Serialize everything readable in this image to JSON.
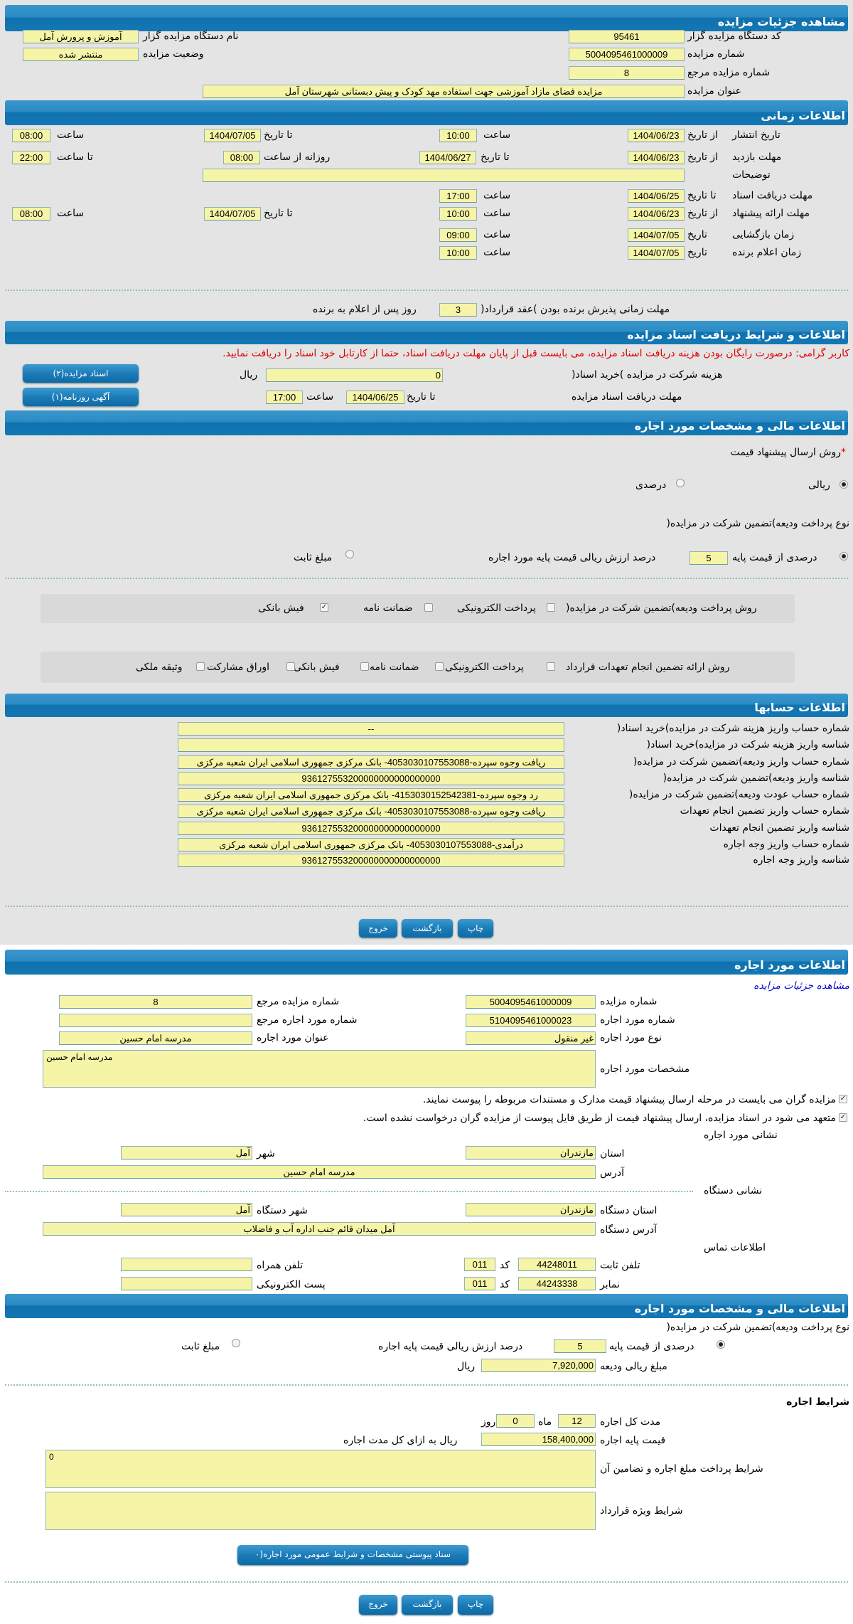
{
  "s1": {
    "title": "مشاهده جزئیات مزایده",
    "org_code_label": "کد دستگاه مزایده گزار",
    "org_code": "95461",
    "org_name_label": "نام دستگاه مزایده گزار",
    "org_name": "آموزش و پرورش آمل",
    "auction_no_label": "شماره مزایده",
    "auction_no": "5004095461000009",
    "status_label": "وضعیت مزایده",
    "status": "منتشر شده",
    "ref_no_label": "شماره مزایده مرجع",
    "ref_no": "8",
    "subject_label": "عنوان مزایده",
    "subject": "مزایده فضای مازاد آموزشی جهت استفاده مهد کودک و پیش دبستانی شهرستان آمل"
  },
  "s2": {
    "title": "اطلاعات زمانی",
    "from_date": "از تاریخ",
    "to_date": "تا تاریخ",
    "date": "تاریخ",
    "hour": "ساعت",
    "to_hour": "تا ساعت",
    "daily_from": "روزانه از ساعت",
    "publish": {
      "label": "تاریخ انتشار",
      "from": "1404/06/23",
      "from_time": "10:00",
      "to": "1404/07/05",
      "to_time": "08:00"
    },
    "visit": {
      "label": "مهلت بازدید",
      "from": "1404/06/23",
      "to": "1404/06/27",
      "daily_from": "08:00",
      "daily_to": "22:00"
    },
    "notes_label": "توضیحات",
    "notes": "",
    "docs": {
      "label": "مهلت دریافت اسناد",
      "to": "1404/06/25",
      "time": "17:00"
    },
    "offer": {
      "label": "مهلت ارائه پیشنهاد",
      "from": "1404/06/23",
      "from_time": "10:00",
      "to": "1404/07/05",
      "to_time": "08:00"
    },
    "opening": {
      "label": "زمان بازگشایی",
      "date": "1404/07/05",
      "time": "09:00"
    },
    "winner": {
      "label": "زمان اعلام برنده",
      "date": "1404/07/05",
      "time": "10:00"
    },
    "accept_label": "مهلت زمانی پذیرش برنده بودن )عقد قرارداد(",
    "accept_days": "3",
    "accept_suffix": "روز پس از اعلام به برنده"
  },
  "s3": {
    "title": "اطلاعات و شرایط دریافت اسناد مزایده",
    "warning": "کاربر گرامی: درصورت رایگان بودن هزینه دریافت اسناد مزایده، می بایست قبل از پایان مهلت دریافت اسناد، حتما از کارتابل خود اسناد را دریافت نمایید.",
    "fee_label": "هزینه شرکت در مزایده )خرید اسناد(",
    "fee": "0",
    "currency": "ریال",
    "deadline_label": "مهلت دریافت اسناد مزایده",
    "to_date": "تا تاریخ",
    "deadline": "1404/06/25",
    "hour": "ساعت",
    "deadline_time": "17:00",
    "docs_button": "اسناد مزایده(۲)",
    "ad_button": "آگهی روزنامه(۱)"
  },
  "s4": {
    "title": "اطلاعات مالی و مشخصات مورد اجاره",
    "price_method_label": "روش ارسال پیشنهاد قیمت",
    "required_mark": "*",
    "rial": "ریالی",
    "percent": "درصدی",
    "deposit_type_label": "نوع پرداخت ودیعه)تضمین شرکت در مزایده(",
    "pct_of_base": "درصدی از قیمت پایه",
    "pct_value": "5",
    "pct_suffix": "درصد ارزش ریالی قیمت پایه مورد اجاره",
    "fixed": "مبلغ ثابت",
    "deposit_method_label": "روش پرداخت ودیعه)تضمین شرکت در مزایده(",
    "deposit_methods": [
      {
        "label": "پرداخت الکترونیکی",
        "checked": false
      },
      {
        "label": "ضمانت نامه",
        "checked": false
      },
      {
        "label": "فیش بانکی",
        "checked": true
      }
    ],
    "guarantee_label": "روش ارائه تضمین انجام تعهدات قرارداد",
    "guarantee_methods": [
      {
        "label": "پرداخت الکترونیکی",
        "checked": false
      },
      {
        "label": "ضمانت نامه",
        "checked": false
      },
      {
        "label": "فیش بانکی",
        "checked": false
      },
      {
        "label": "اوراق مشارکت",
        "checked": false
      },
      {
        "label": "وثیقه ملکی",
        "checked": false
      }
    ]
  },
  "s5": {
    "title": "اطلاعات حسابها",
    "rows": [
      {
        "label": "شماره حساب واریز هزینه شرکت در مزایده)خرید اسناد(",
        "value": "--"
      },
      {
        "label": "شناسه واریز هزینه شرکت در مزایده)خرید اسناد(",
        "value": ""
      },
      {
        "label": "شماره حساب واریز ودیعه)تضمین شرکت در مزایده(",
        "value": "ریافت وجوه سپرده-4053030107553088- بانک مرکزی جمهوری اسلامی ایران شعبه مرکزی"
      },
      {
        "label": "شناسه واریز ودیعه)تضمین شرکت در مزایده(",
        "value": "936127553200000000000000000"
      },
      {
        "label": "شماره حساب عودت ودیعه)تضمین شرکت در مزایده(",
        "value": "رد وجوه سپرده-4153030152542381- بانک مرکزی جمهوری اسلامی ایران شعبه مرکزی"
      },
      {
        "label": "شماره حساب واریز تضمین انجام تعهدات",
        "value": "ریافت وجوه سپرده-4053030107553088- بانک مرکزی جمهوری اسلامی ایران شعبه مرکزی"
      },
      {
        "label": "شناسه واریز تضمین انجام تعهدات",
        "value": "936127553200000000000000000"
      },
      {
        "label": "شماره حساب واریز وجه اجاره",
        "value": "درآمدی-4053030107553088- بانک مرکزی جمهوری اسلامی ایران شعبه مرکزی"
      },
      {
        "label": "شناسه واریز وجه اجاره",
        "value": "936127553200000000000000000"
      }
    ]
  },
  "actions": {
    "print": "چاپ",
    "back": "بازگشت",
    "exit": "خروج"
  },
  "s6": {
    "title": "اطلاعات مورد اجاره",
    "link": "مشاهده جزئیات مزایده",
    "auction_no_label": "شماره مزایده",
    "auction_no": "5004095461000009",
    "ref_no_label": "شماره مزایده مرجع",
    "ref_no": "8",
    "item_no_label": "شماره مورد اجاره",
    "item_no": "5104095461000023",
    "item_ref_label": "شماره مورد اجاره مرجع",
    "item_ref": "",
    "type_label": "نوع مورد اجاره",
    "type": "غیر منقول",
    "item_title_label": "عنوان مورد اجاره",
    "item_title": "مدرسه  امام حسین",
    "spec_label": "مشخصات مورد اجاره",
    "spec": "مدرسه  امام حسین",
    "check1": "مزایده گران می بایست در مرحله ارسال پیشنهاد قیمت مدارک و مستندات مربوطه را پیوست نمایند.",
    "check2": "متعهد می شود در اسناد مزایده، ارسال پیشنهاد قیمت از طریق فایل پیوست از مزایده گران درخواست نشده است.",
    "addr_title": "نشانی مورد اجاره",
    "province_label": "استان",
    "province": "مازندران",
    "city_label": "شهر",
    "city": "آمل",
    "address_label": "آدرس",
    "address": "مدرسه  امام حسین",
    "org_addr_title": "نشانی دستگاه",
    "org_province_label": "استان دستگاه",
    "org_province": "مازندران",
    "org_city_label": "شهر دستگاه",
    "org_city": "آمل",
    "org_address_label": "آدرس دستگاه",
    "org_address": "آمل میدان قائم جنب اداره آب و فاضلاب",
    "contact_title": "اطلاعات تماس",
    "code_label": "کد",
    "phone_label": "تلفن ثابت",
    "phone": "44248011",
    "phone_code": "011",
    "mobile_label": "تلفن همراه",
    "mobile": "",
    "fax_label": "نمابر",
    "fax": "44243338",
    "fax_code": "011",
    "email_label": "پست الکترونیکی",
    "email": ""
  },
  "s7": {
    "title": "اطلاعات مالی و مشخصات مورد اجاره",
    "deposit_type_label": "نوع پرداخت ودیعه)تضمین شرکت در مزایده(",
    "pct_of_base": "درصدی از قیمت پایه",
    "pct_value": "5",
    "pct_suffix": "درصد ارزش ریالی قیمت پایه اجاره",
    "fixed": "مبلغ ثابت",
    "deposit_amount_label": "مبلغ ریالی ودیعه",
    "deposit_amount": "7,920,000",
    "currency": "ریال",
    "terms_title": "شرایط اجاره",
    "duration_label": "مدت کل اجاره",
    "months": "12",
    "month_unit": "ماه",
    "days": "0",
    "day_unit": "روز",
    "base_price_label": "قیمت پایه اجاره",
    "base_price": "158,400,000",
    "base_price_suffix": "ریال به ازای کل مدت اجاره",
    "payment_terms_label": "شرایط پرداخت مبلغ اجاره و تضامین آن",
    "payment_terms": "0",
    "special_terms_label": "شرایط ویژه قرارداد",
    "special_terms": "",
    "attachment_button": "سناد پیوستی مشخصات و شرایط عمومی مورد اجاره(۰"
  }
}
